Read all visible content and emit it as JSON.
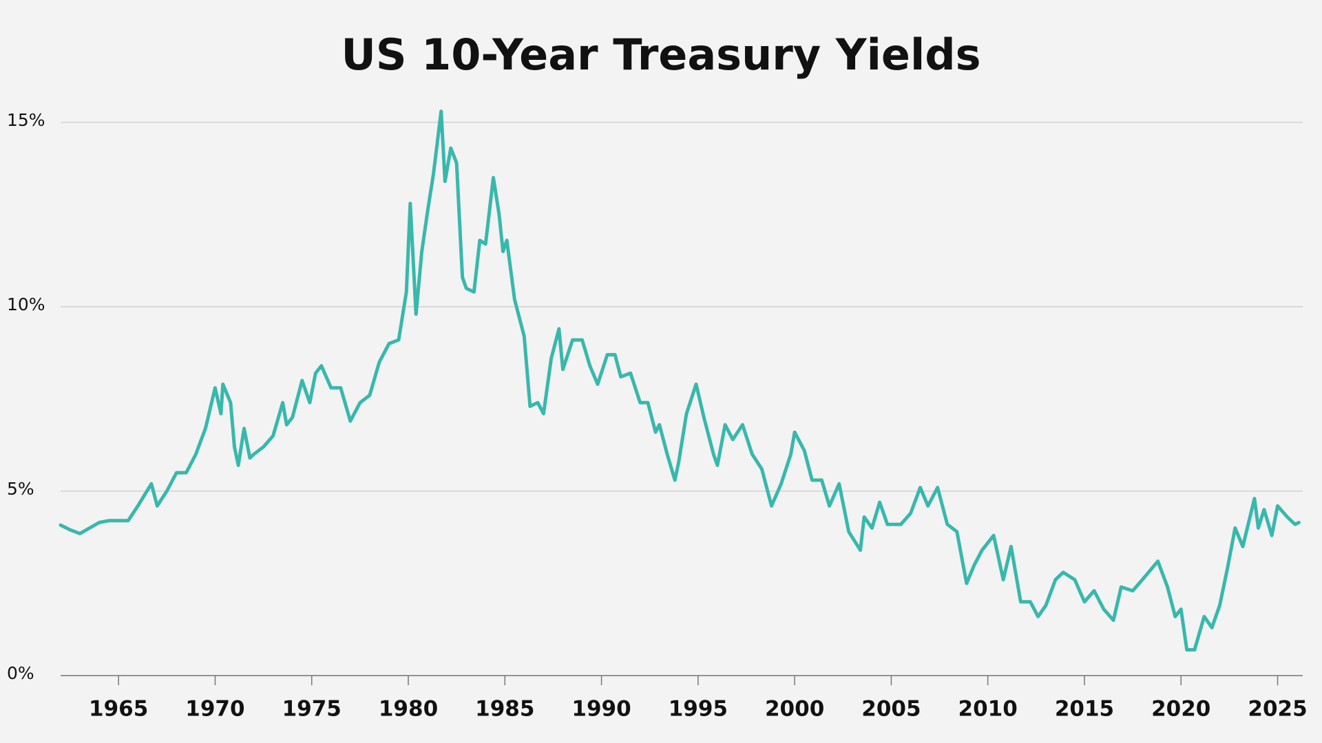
{
  "chart_data": {
    "type": "line",
    "title": "US 10-Year Treasury Yields",
    "x": [
      1962.0,
      1962.5,
      1963.0,
      1963.5,
      1964.0,
      1964.5,
      1965.0,
      1965.5,
      1966.0,
      1966.7,
      1967.0,
      1967.5,
      1968.0,
      1968.5,
      1969.0,
      1969.5,
      1970.0,
      1970.3,
      1970.4,
      1970.8,
      1971.0,
      1971.2,
      1971.5,
      1971.8,
      1972.0,
      1972.5,
      1973.0,
      1973.5,
      1973.7,
      1974.0,
      1974.5,
      1974.9,
      1975.2,
      1975.5,
      1976.0,
      1976.5,
      1977.0,
      1977.5,
      1978.0,
      1978.5,
      1979.0,
      1979.5,
      1979.9,
      1980.1,
      1980.4,
      1980.7,
      1981.0,
      1981.3,
      1981.7,
      1981.9,
      1982.2,
      1982.5,
      1982.8,
      1983.0,
      1983.4,
      1983.7,
      1984.0,
      1984.4,
      1984.7,
      1984.9,
      1985.1,
      1985.5,
      1986.0,
      1986.3,
      1986.7,
      1987.0,
      1987.4,
      1987.8,
      1988.0,
      1988.5,
      1989.0,
      1989.4,
      1989.8,
      1990.3,
      1990.7,
      1991.0,
      1991.5,
      1992.0,
      1992.4,
      1992.8,
      1993.0,
      1993.4,
      1993.8,
      1994.0,
      1994.4,
      1994.9,
      1995.3,
      1995.8,
      1996.0,
      1996.4,
      1996.8,
      1997.3,
      1997.8,
      1998.3,
      1998.8,
      1999.3,
      1999.8,
      2000.0,
      2000.5,
      2000.9,
      2001.4,
      2001.8,
      2002.3,
      2002.8,
      2003.4,
      2003.6,
      2004.0,
      2004.4,
      2004.8,
      2005.5,
      2006.0,
      2006.5,
      2006.9,
      2007.4,
      2007.9,
      2008.4,
      2008.9,
      2009.3,
      2009.7,
      2010.3,
      2010.8,
      2011.2,
      2011.7,
      2012.2,
      2012.6,
      2013.0,
      2013.5,
      2013.9,
      2014.5,
      2015.0,
      2015.5,
      2016.0,
      2016.5,
      2016.9,
      2017.5,
      2018.0,
      2018.8,
      2019.3,
      2019.7,
      2020.0,
      2020.3,
      2020.7,
      2021.2,
      2021.6,
      2022.0,
      2022.4,
      2022.8,
      2023.2,
      2023.8,
      2024.0,
      2024.3,
      2024.7,
      2025.0,
      2025.5,
      2025.9,
      2026.1
    ],
    "values": [
      4.08,
      3.95,
      3.85,
      4.0,
      4.15,
      4.2,
      4.2,
      4.2,
      4.6,
      5.2,
      4.6,
      5.0,
      5.5,
      5.5,
      6.0,
      6.7,
      7.8,
      7.1,
      7.9,
      7.4,
      6.2,
      5.7,
      6.7,
      5.9,
      6.0,
      6.2,
      6.5,
      7.4,
      6.8,
      7.0,
      8.0,
      7.4,
      8.2,
      8.4,
      7.8,
      7.8,
      6.9,
      7.4,
      7.6,
      8.5,
      9.0,
      9.1,
      10.4,
      12.8,
      9.8,
      11.5,
      12.6,
      13.6,
      15.3,
      13.4,
      14.3,
      13.9,
      10.8,
      10.5,
      10.4,
      11.8,
      11.7,
      13.5,
      12.5,
      11.5,
      11.8,
      10.2,
      9.2,
      7.3,
      7.4,
      7.1,
      8.6,
      9.4,
      8.3,
      9.1,
      9.1,
      8.4,
      7.9,
      8.7,
      8.7,
      8.1,
      8.2,
      7.4,
      7.4,
      6.6,
      6.8,
      6.0,
      5.3,
      5.8,
      7.1,
      7.9,
      7.0,
      6.0,
      5.7,
      6.8,
      6.4,
      6.8,
      6.0,
      5.6,
      4.6,
      5.2,
      6.0,
      6.6,
      6.1,
      5.3,
      5.3,
      4.6,
      5.2,
      3.9,
      3.4,
      4.3,
      4.0,
      4.7,
      4.1,
      4.1,
      4.4,
      5.1,
      4.6,
      5.1,
      4.1,
      3.9,
      2.5,
      3.0,
      3.4,
      3.8,
      2.6,
      3.5,
      2.0,
      2.0,
      1.6,
      1.9,
      2.6,
      2.8,
      2.6,
      2.0,
      2.3,
      1.8,
      1.5,
      2.4,
      2.3,
      2.6,
      3.1,
      2.4,
      1.6,
      1.8,
      0.7,
      0.7,
      1.6,
      1.3,
      1.9,
      2.9,
      4.0,
      3.5,
      4.8,
      4.0,
      4.5,
      3.8,
      4.6,
      4.3,
      4.1,
      4.15
    ],
    "color": "#38b8ac",
    "xlim": [
      1962,
      2026.3
    ],
    "xticks": [
      1965,
      1970,
      1975,
      1980,
      1985,
      1990,
      1995,
      2000,
      2005,
      2010,
      2015,
      2020,
      2025
    ],
    "ylim": [
      0,
      15.5
    ],
    "yticks": [
      {
        "value": 0,
        "label": "0%"
      },
      {
        "value": 5,
        "label": "5%"
      },
      {
        "value": 10,
        "label": "10%"
      },
      {
        "value": 15,
        "label": "15%"
      }
    ],
    "grid": true
  }
}
